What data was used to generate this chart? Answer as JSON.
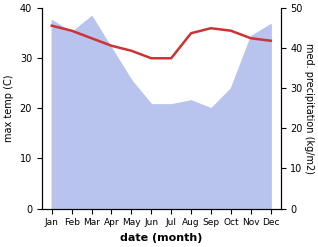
{
  "months": [
    "Jan",
    "Feb",
    "Mar",
    "Apr",
    "May",
    "Jun",
    "Jul",
    "Aug",
    "Sep",
    "Oct",
    "Nov",
    "Dec"
  ],
  "max_temp": [
    36.5,
    35.5,
    34.0,
    32.5,
    31.5,
    30.0,
    30.0,
    35.0,
    36.0,
    35.5,
    34.0,
    33.5
  ],
  "precipitation": [
    47,
    44,
    48,
    40,
    32,
    26,
    26,
    27,
    25,
    30,
    43,
    46
  ],
  "temp_color": "#cc3333",
  "precip_fill_color": "#b8c4ee",
  "background_color": "#ffffff",
  "left_ylim": [
    0,
    40
  ],
  "right_ylim": [
    0,
    50
  ],
  "left_yticks": [
    0,
    10,
    20,
    30,
    40
  ],
  "right_yticks": [
    0,
    10,
    20,
    30,
    40,
    50
  ],
  "xlabel": "date (month)",
  "ylabel_left": "max temp (C)",
  "ylabel_right": "med. precipitation (kg/m2)",
  "temp_linewidth": 1.8,
  "xlabel_fontsize": 8,
  "ylabel_fontsize": 7,
  "tick_fontsize": 7,
  "xtick_fontsize": 6.5
}
